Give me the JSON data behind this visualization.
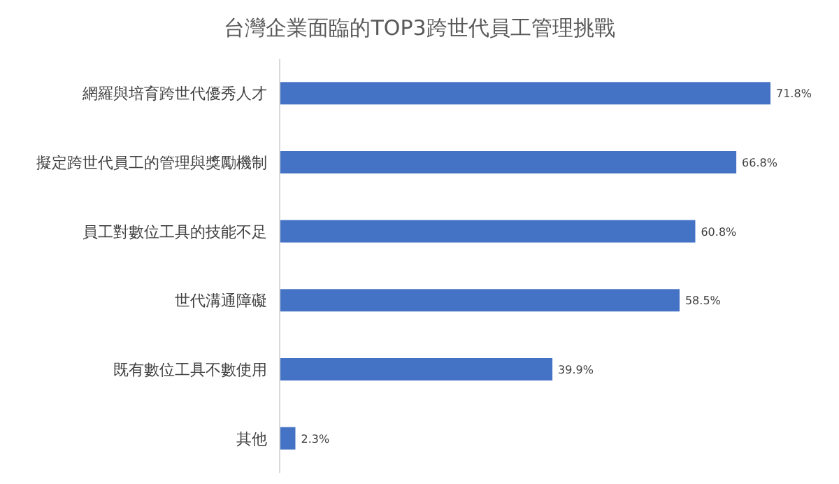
{
  "chart_data": {
    "type": "bar",
    "orientation": "horizontal",
    "title": "台灣企業面臨的TOP3跨世代員工管理挑戰",
    "categories": [
      "網羅與培育跨世代優秀人才",
      "擬定跨世代員工的管理與獎勵機制",
      "員工對數位工具的技能不足",
      "世代溝通障礙",
      "既有數位工具不數使用",
      "其他"
    ],
    "values": [
      71.8,
      66.8,
      60.8,
      58.5,
      39.9,
      2.3
    ],
    "value_labels": [
      "71.8%",
      "66.8%",
      "60.8%",
      "58.5%",
      "39.9%",
      "2.3%"
    ],
    "color": "#4472c4"
  }
}
